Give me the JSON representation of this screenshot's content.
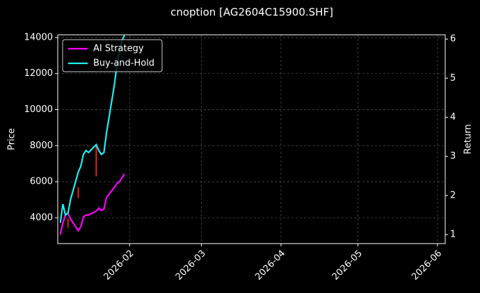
{
  "chart_data": {
    "type": "line",
    "title": "cnoption [AG2604C15900.SHF]",
    "y_label": "Price",
    "y2_label": "Return",
    "x": [
      "2026-01-05",
      "2026-01-06",
      "2026-01-07",
      "2026-01-08",
      "2026-01-09",
      "2026-01-12",
      "2026-01-13",
      "2026-01-14",
      "2026-01-15",
      "2026-01-16",
      "2026-01-19",
      "2026-01-20",
      "2026-01-21",
      "2026-01-22",
      "2026-01-23",
      "2026-01-26",
      "2026-01-27",
      "2026-01-28",
      "2026-01-29",
      "2026-01-30"
    ],
    "series": [
      {
        "name": "AI Strategy",
        "color": "#ff00ff",
        "axis": "y2",
        "values": [
          1.0,
          1.3,
          1.5,
          1.55,
          1.4,
          1.1,
          1.2,
          1.45,
          1.5,
          1.5,
          1.6,
          1.68,
          1.62,
          1.65,
          1.95,
          2.2,
          2.3,
          2.35,
          2.45,
          2.55
        ]
      },
      {
        "name": "Buy-and-Hold",
        "color": "#22eeee",
        "axis": "y2",
        "values": [
          1.3,
          1.78,
          1.5,
          1.55,
          1.9,
          2.6,
          2.75,
          3.05,
          3.15,
          3.1,
          3.3,
          3.15,
          3.05,
          3.1,
          3.6,
          4.8,
          5.3,
          5.7,
          5.95,
          6.1
        ]
      }
    ],
    "candles": {
      "color": "#ff2020",
      "x": [
        "2026-01-08",
        "2026-01-12",
        "2026-01-19"
      ],
      "low": [
        3450,
        5100,
        6300
      ],
      "high": [
        3950,
        5700,
        8050
      ]
    },
    "xlim": [
      "2026-01-04",
      "2026-06-04"
    ],
    "xticks": [
      "2026-02",
      "2026-03",
      "2026-04",
      "2026-05",
      "2026-06"
    ],
    "ylim": [
      2570,
      14150
    ],
    "yticks": [
      4000,
      6000,
      8000,
      10000,
      12000,
      14000
    ],
    "y2lim": [
      0.77,
      6.11
    ],
    "y2ticks": [
      1,
      2,
      3,
      4,
      5,
      6
    ],
    "grid": true,
    "legend": "upper-left"
  }
}
